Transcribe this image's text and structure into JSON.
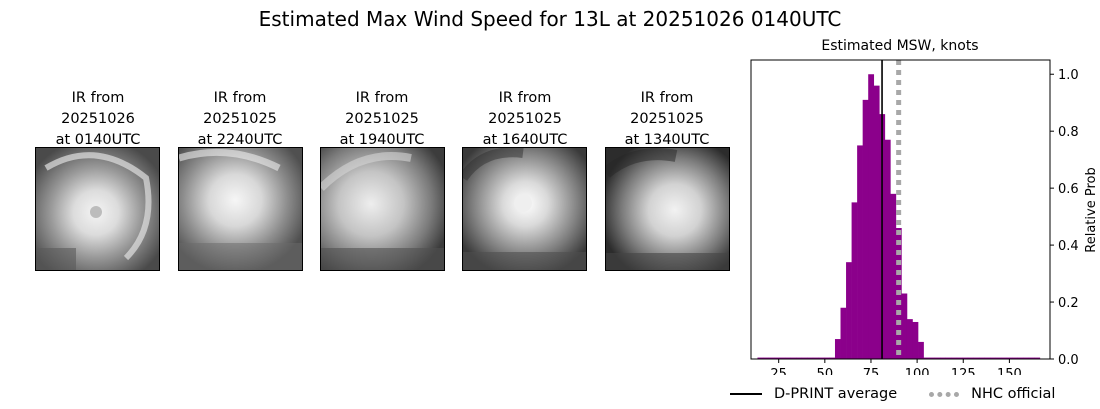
{
  "title": "Estimated Max Wind Speed for 13L at 20251026 0140UTC",
  "ir_panels": [
    {
      "caption": "IR from\n20251026\nat 0140UTC"
    },
    {
      "caption": "IR from\n20251025\nat 2240UTC"
    },
    {
      "caption": "IR from\n20251025\nat 1940UTC"
    },
    {
      "caption": "IR from\n20251025\nat 1640UTC"
    },
    {
      "caption": "IR from\n20251025\nat 1340UTC"
    }
  ],
  "chart_data": {
    "type": "bar",
    "title": "Estimated MSW, knots",
    "xlabel": "",
    "ylabel": "Relative Prob",
    "xlim": [
      10,
      172
    ],
    "ylim": [
      0,
      1.05
    ],
    "x_ticks": [
      25,
      50,
      75,
      100,
      125,
      150
    ],
    "y_ticks": [
      0.0,
      0.2,
      0.4,
      0.6,
      0.8,
      1.0
    ],
    "y_tick_labels": [
      "0.0",
      "0.2",
      "0.4",
      "0.6",
      "0.8",
      "1.0"
    ],
    "y_axis_side": "right",
    "bin_width": 3,
    "bins": [
      {
        "x": 15,
        "value": 0.005
      },
      {
        "x": 18,
        "value": 0.005
      },
      {
        "x": 21,
        "value": 0.005
      },
      {
        "x": 24,
        "value": 0.005
      },
      {
        "x": 27,
        "value": 0.005
      },
      {
        "x": 30,
        "value": 0.005
      },
      {
        "x": 33,
        "value": 0.005
      },
      {
        "x": 36,
        "value": 0.005
      },
      {
        "x": 39,
        "value": 0.005
      },
      {
        "x": 42,
        "value": 0.005
      },
      {
        "x": 45,
        "value": 0.005
      },
      {
        "x": 48,
        "value": 0.005
      },
      {
        "x": 51,
        "value": 0.005
      },
      {
        "x": 54,
        "value": 0.005
      },
      {
        "x": 57,
        "value": 0.07
      },
      {
        "x": 60,
        "value": 0.18
      },
      {
        "x": 63,
        "value": 0.34
      },
      {
        "x": 66,
        "value": 0.55
      },
      {
        "x": 69,
        "value": 0.75
      },
      {
        "x": 72,
        "value": 0.91
      },
      {
        "x": 75,
        "value": 1.0
      },
      {
        "x": 78,
        "value": 0.96
      },
      {
        "x": 81,
        "value": 0.86
      },
      {
        "x": 84,
        "value": 0.77
      },
      {
        "x": 87,
        "value": 0.58
      },
      {
        "x": 90,
        "value": 0.46
      },
      {
        "x": 93,
        "value": 0.23
      },
      {
        "x": 96,
        "value": 0.14
      },
      {
        "x": 99,
        "value": 0.13
      },
      {
        "x": 102,
        "value": 0.06
      },
      {
        "x": 105,
        "value": 0.005
      },
      {
        "x": 108,
        "value": 0.005
      },
      {
        "x": 111,
        "value": 0.005
      },
      {
        "x": 114,
        "value": 0.005
      },
      {
        "x": 117,
        "value": 0.005
      },
      {
        "x": 120,
        "value": 0.005
      },
      {
        "x": 123,
        "value": 0.005
      },
      {
        "x": 126,
        "value": 0.005
      },
      {
        "x": 129,
        "value": 0.005
      },
      {
        "x": 132,
        "value": 0.005
      },
      {
        "x": 135,
        "value": 0.005
      },
      {
        "x": 138,
        "value": 0.005
      },
      {
        "x": 141,
        "value": 0.005
      },
      {
        "x": 144,
        "value": 0.005
      },
      {
        "x": 147,
        "value": 0.005
      },
      {
        "x": 150,
        "value": 0.005
      },
      {
        "x": 153,
        "value": 0.005
      },
      {
        "x": 156,
        "value": 0.005
      },
      {
        "x": 159,
        "value": 0.005
      },
      {
        "x": 162,
        "value": 0.005
      },
      {
        "x": 165,
        "value": 0.005
      }
    ],
    "bar_color": "#8b008b",
    "dprint_average": 81,
    "nhc_official": 90,
    "legend": [
      {
        "label": "D-PRINT average",
        "style": "solid",
        "color": "#000000"
      },
      {
        "label": "NHC official",
        "style": "dotted",
        "color": "#a8a8a8"
      }
    ],
    "legend_placement": "bottom"
  }
}
